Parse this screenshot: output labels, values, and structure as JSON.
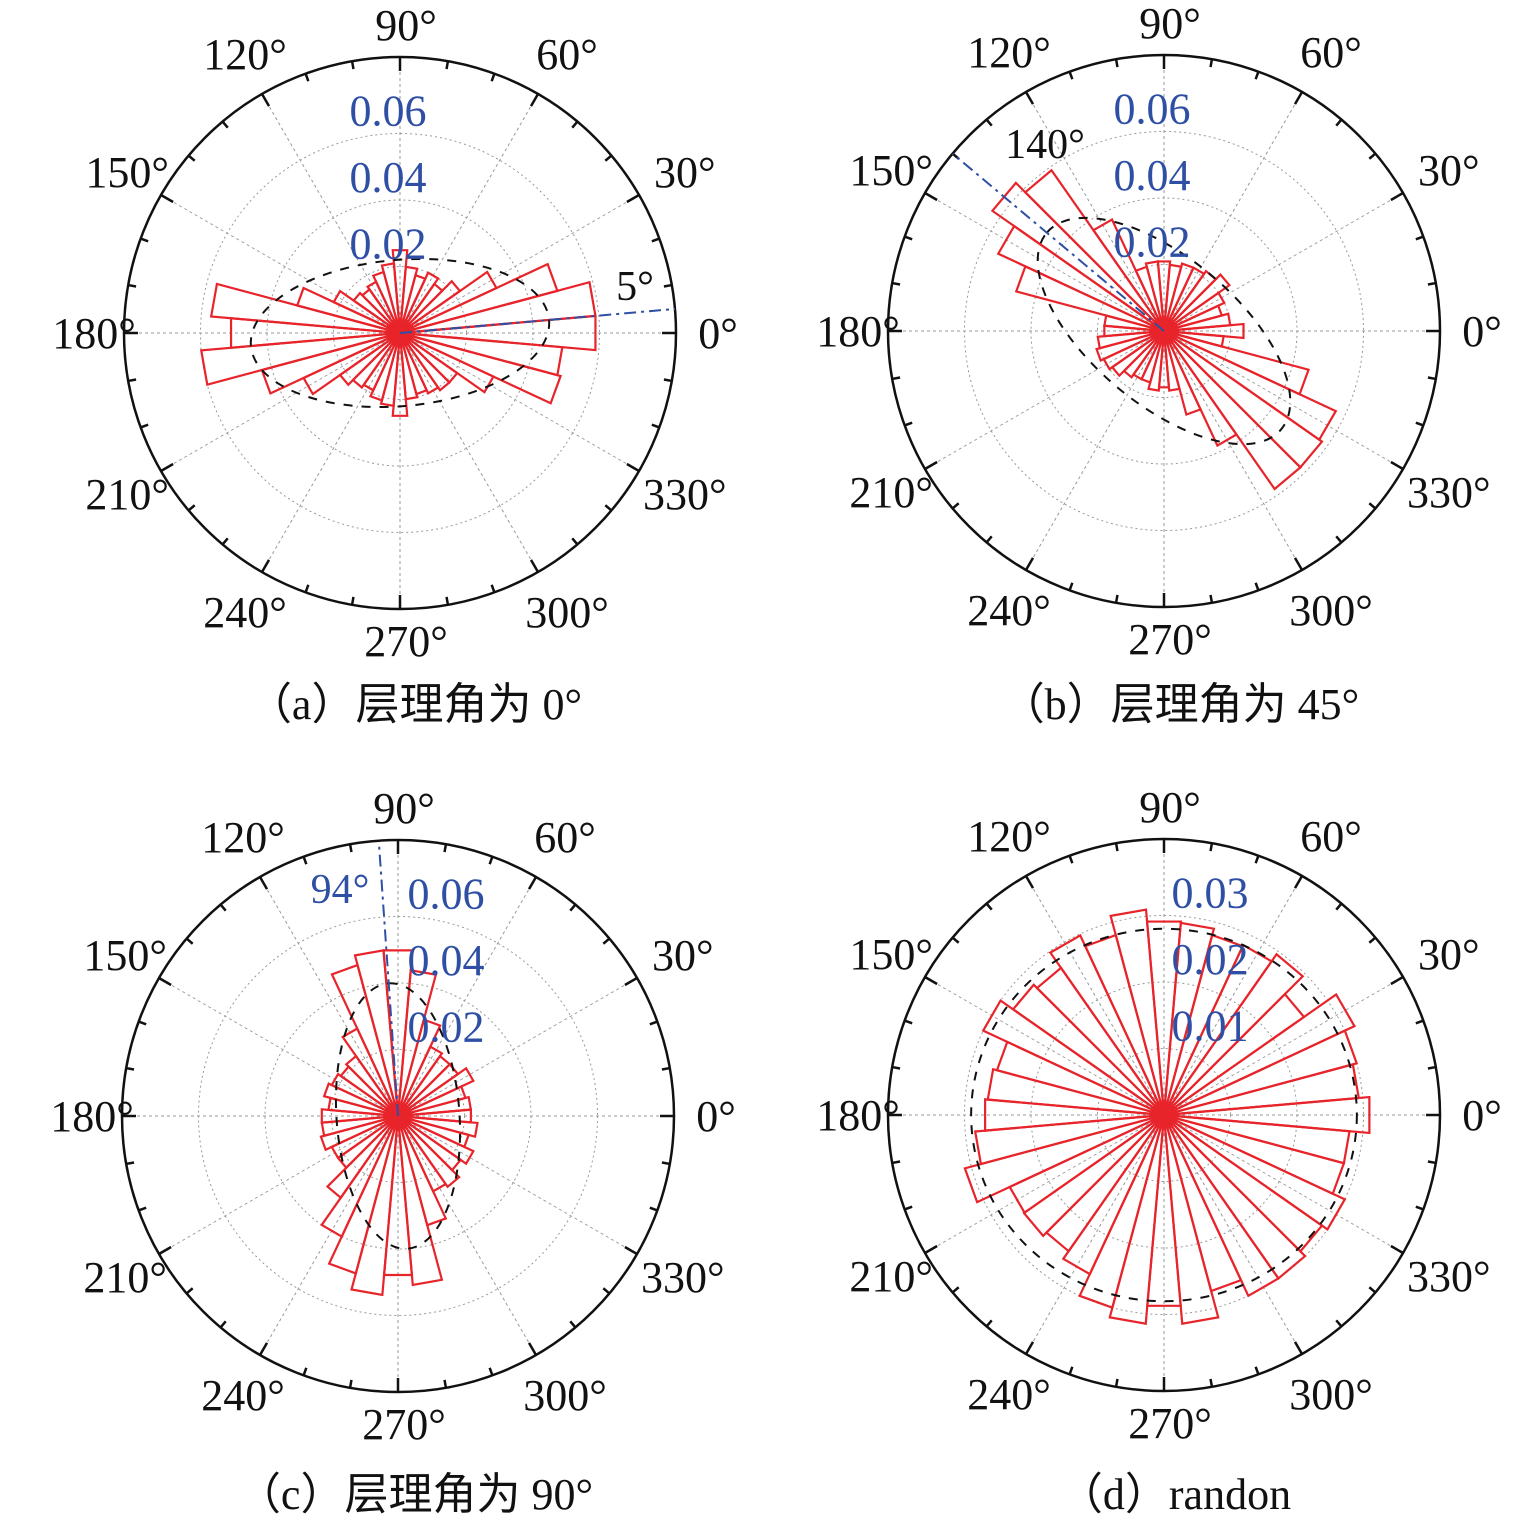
{
  "colors": {
    "bars": "#e8242b",
    "radial_ticks": "#2e4fa3",
    "direction_line": "#2e4fa3",
    "ellipse": "#111111",
    "grid": "#999999"
  },
  "chart_data": [
    {
      "type": "bar",
      "projection": "polar",
      "title": "（a）层理角为 0°",
      "theta_ticks": [
        "0°",
        "30°",
        "60°",
        "90°",
        "120°",
        "150°",
        "180°",
        "210°",
        "240°",
        "270°",
        "300°",
        "330°"
      ],
      "r_ticks": [
        0.02,
        0.04,
        0.06
      ],
      "r_tick_labels": [
        "0.02",
        "0.04",
        "0.06"
      ],
      "rlim": [
        0,
        0.083
      ],
      "bin_width_deg": 10,
      "angles": [
        0,
        10,
        20,
        30,
        40,
        50,
        60,
        70,
        80,
        90,
        100,
        110,
        120,
        130,
        140,
        150,
        160,
        170,
        180,
        190,
        200,
        210,
        220,
        230,
        240,
        250,
        260,
        270,
        280,
        290,
        300,
        310,
        320,
        330,
        340,
        350
      ],
      "values": [
        0.059,
        0.059,
        0.049,
        0.032,
        0.022,
        0.018,
        0.02,
        0.018,
        0.02,
        0.025,
        0.021,
        0.019,
        0.017,
        0.016,
        0.017,
        0.022,
        0.032,
        0.057,
        0.051,
        0.06,
        0.043,
        0.032,
        0.022,
        0.02,
        0.019,
        0.021,
        0.022,
        0.025,
        0.02,
        0.019,
        0.02,
        0.021,
        0.021,
        0.031,
        0.05,
        0.049
      ],
      "ellipse": {
        "semi_major": 0.045,
        "semi_minor": 0.022,
        "orientation_deg": 5
      },
      "dominant_direction": {
        "angle_deg": 5,
        "label": "5°"
      }
    },
    {
      "type": "bar",
      "projection": "polar",
      "title": "（b）层理角为 45°",
      "theta_ticks": [
        "0°",
        "30°",
        "60°",
        "90°",
        "120°",
        "150°",
        "180°",
        "210°",
        "240°",
        "270°",
        "300°",
        "330°"
      ],
      "r_ticks": [
        0.02,
        0.04,
        0.06
      ],
      "r_tick_labels": [
        "0.02",
        "0.04",
        "0.06"
      ],
      "rlim": [
        0,
        0.083
      ],
      "bin_width_deg": 10,
      "angles": [
        0,
        10,
        20,
        30,
        40,
        50,
        60,
        70,
        80,
        90,
        100,
        110,
        120,
        130,
        140,
        150,
        160,
        170,
        180,
        190,
        200,
        210,
        220,
        230,
        240,
        250,
        260,
        270,
        280,
        290,
        300,
        310,
        320,
        330,
        340,
        350
      ],
      "values": [
        0.024,
        0.02,
        0.018,
        0.02,
        0.024,
        0.022,
        0.021,
        0.021,
        0.02,
        0.021,
        0.021,
        0.02,
        0.037,
        0.059,
        0.063,
        0.055,
        0.046,
        0.018,
        0.018,
        0.02,
        0.021,
        0.02,
        0.019,
        0.017,
        0.016,
        0.016,
        0.018,
        0.017,
        0.018,
        0.026,
        0.038,
        0.058,
        0.058,
        0.057,
        0.045,
        0.018
      ],
      "ellipse": {
        "semi_major": 0.046,
        "semi_minor": 0.022,
        "orientation_deg": 140
      },
      "dominant_direction": {
        "angle_deg": 140,
        "label": "140°"
      }
    },
    {
      "type": "bar",
      "projection": "polar",
      "title": "（c）层理角为 90°",
      "theta_ticks": [
        "0°",
        "30°",
        "60°",
        "90°",
        "120°",
        "150°",
        "180°",
        "210°",
        "240°",
        "270°",
        "300°",
        "330°"
      ],
      "r_ticks": [
        0.02,
        0.04,
        0.06
      ],
      "r_tick_labels": [
        "0.02",
        "0.04",
        "0.06"
      ],
      "rlim": [
        0,
        0.083
      ],
      "bin_width_deg": 10,
      "angles": [
        0,
        10,
        20,
        30,
        40,
        50,
        60,
        70,
        80,
        90,
        100,
        110,
        120,
        130,
        140,
        150,
        160,
        170,
        180,
        190,
        200,
        210,
        220,
        230,
        240,
        250,
        260,
        270,
        280,
        290,
        300,
        310,
        320,
        330,
        340,
        350
      ],
      "values": [
        0.022,
        0.022,
        0.021,
        0.025,
        0.022,
        0.022,
        0.023,
        0.03,
        0.044,
        0.05,
        0.05,
        0.047,
        0.029,
        0.022,
        0.021,
        0.022,
        0.023,
        0.021,
        0.023,
        0.023,
        0.024,
        0.022,
        0.022,
        0.03,
        0.04,
        0.049,
        0.054,
        0.048,
        0.051,
        0.034,
        0.025,
        0.026,
        0.023,
        0.025,
        0.022,
        0.024
      ],
      "ellipse": {
        "semi_major": 0.04,
        "semi_minor": 0.0185,
        "orientation_deg": 94
      },
      "dominant_direction": {
        "angle_deg": 94,
        "label": "94°"
      }
    },
    {
      "type": "bar",
      "projection": "polar",
      "title": "（d）randon",
      "theta_ticks": [
        "0°",
        "30°",
        "60°",
        "90°",
        "120°",
        "150°",
        "180°",
        "210°",
        "240°",
        "270°",
        "300°",
        "330°"
      ],
      "r_ticks": [
        0.01,
        0.02,
        0.03
      ],
      "r_tick_labels": [
        "0.01",
        "0.02",
        "0.03"
      ],
      "rlim": [
        0,
        0.0415
      ],
      "bin_width_deg": 10,
      "angles": [
        0,
        10,
        20,
        30,
        40,
        50,
        60,
        70,
        80,
        90,
        100,
        110,
        120,
        130,
        140,
        150,
        160,
        170,
        180,
        190,
        200,
        210,
        220,
        230,
        240,
        250,
        260,
        270,
        280,
        290,
        300,
        310,
        320,
        330,
        340,
        350
      ],
      "values": [
        0.031,
        0.0294,
        0.03,
        0.0316,
        0.0257,
        0.0295,
        0.0282,
        0.028,
        0.029,
        0.0292,
        0.031,
        0.028,
        0.0298,
        0.027,
        0.0277,
        0.03,
        0.026,
        0.0266,
        0.027,
        0.0285,
        0.031,
        0.0256,
        0.0257,
        0.025,
        0.0264,
        0.03,
        0.0315,
        0.0288,
        0.0315,
        0.0274,
        0.03,
        0.03,
        0.029,
        0.03,
        0.028,
        0.028
      ],
      "ellipse": {
        "semi_major": 0.029,
        "semi_minor": 0.028,
        "orientation_deg": 0
      },
      "dominant_direction": null
    }
  ]
}
